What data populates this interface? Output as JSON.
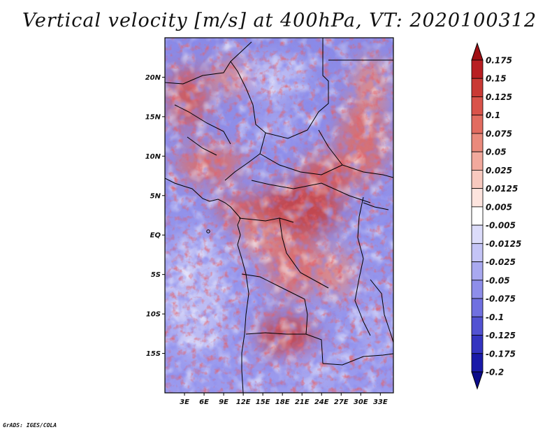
{
  "title": "Vertical velocity [m/s] at 400hPa, VT: 2020100312",
  "credit": "GrADS: IGES/COLA",
  "map": {
    "variable": "Vertical velocity",
    "units": "m/s",
    "level": "400hPa",
    "valid_time": "2020100312",
    "lon_range": [
      0,
      35
    ],
    "lat_range": [
      -20,
      25
    ],
    "lat_ticks": [
      {
        "label": "20N",
        "value": 20
      },
      {
        "label": "15N",
        "value": 15
      },
      {
        "label": "10N",
        "value": 10
      },
      {
        "label": "5N",
        "value": 5
      },
      {
        "label": "EQ",
        "value": 0
      },
      {
        "label": "5S",
        "value": -5
      },
      {
        "label": "10S",
        "value": -10
      },
      {
        "label": "15S",
        "value": -15
      }
    ],
    "lon_ticks": [
      {
        "label": "3E",
        "value": 3
      },
      {
        "label": "6E",
        "value": 6
      },
      {
        "label": "9E",
        "value": 9
      },
      {
        "label": "12E",
        "value": 12
      },
      {
        "label": "15E",
        "value": 15
      },
      {
        "label": "18E",
        "value": 18
      },
      {
        "label": "21E",
        "value": 21
      },
      {
        "label": "24E",
        "value": 24
      },
      {
        "label": "27E",
        "value": 27
      },
      {
        "label": "30E",
        "value": 30
      },
      {
        "label": "33E",
        "value": 33
      }
    ]
  },
  "colorbar": {
    "levels": [
      "0.175",
      "0.15",
      "0.125",
      "0.1",
      "0.075",
      "0.05",
      "0.025",
      "0.0125",
      "0.005",
      "-0.005",
      "-0.0125",
      "-0.025",
      "-0.05",
      "-0.075",
      "-0.1",
      "-0.125",
      "-0.175",
      "-0.2"
    ],
    "colors": [
      "#a00f14",
      "#b81e22",
      "#c93a35",
      "#d9534a",
      "#e26c60",
      "#ea8a7c",
      "#f2a99d",
      "#f8c9bf",
      "#fde4de",
      "#ffffff",
      "#dcdcfa",
      "#c4c4f6",
      "#a9a9f0",
      "#8e8eea",
      "#7070e0",
      "#5252d2",
      "#3434c0",
      "#1a1aa8",
      "#0b0b8a"
    ]
  }
}
